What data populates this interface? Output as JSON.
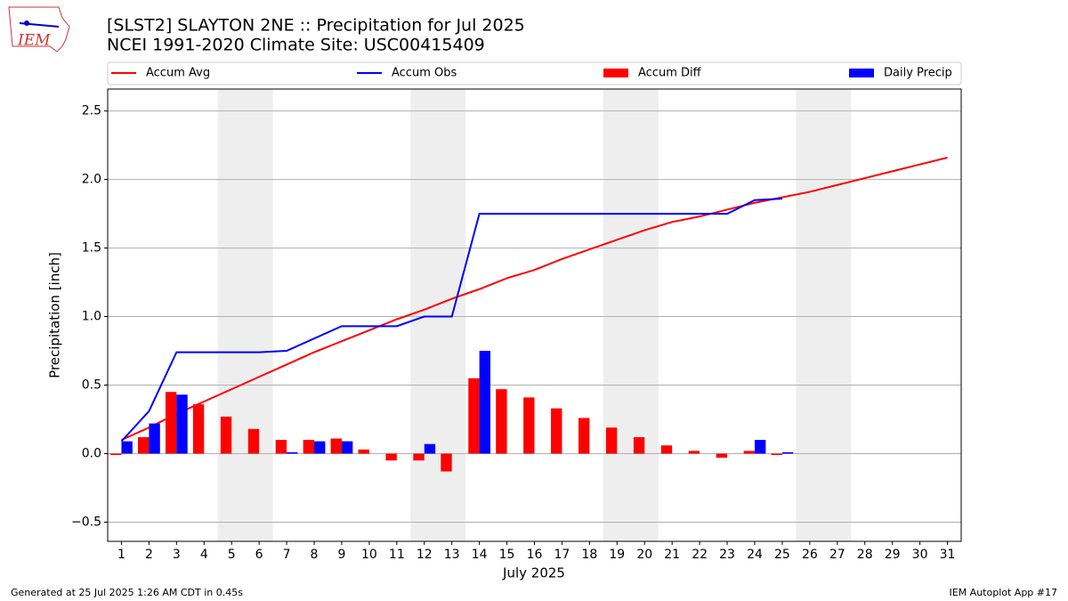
{
  "logo_text": "IEM",
  "footer_left": "Generated at 25 Jul 2025 1:26 AM CDT in 0.45s",
  "footer_right": "IEM Autoplot App #17",
  "chart_data": {
    "type": "combo",
    "title": "[SLST2] SLAYTON 2NE :: Precipitation for Jul 2025",
    "subtitle": "NCEI 1991-2020 Climate Site: USC00415409",
    "ylabel": "Precipitation [inch]",
    "xlabel": "July 2025",
    "x": [
      1,
      2,
      3,
      4,
      5,
      6,
      7,
      8,
      9,
      10,
      11,
      12,
      13,
      14,
      15,
      16,
      17,
      18,
      19,
      20,
      21,
      22,
      23,
      24,
      25,
      26,
      27,
      28,
      29,
      30,
      31
    ],
    "xlim": [
      0.5,
      31.5
    ],
    "xticks": [
      1,
      2,
      3,
      4,
      5,
      6,
      7,
      8,
      9,
      10,
      11,
      12,
      13,
      14,
      15,
      16,
      17,
      18,
      19,
      20,
      21,
      22,
      23,
      24,
      25,
      26,
      27,
      28,
      29,
      30,
      31
    ],
    "ylim": [
      -0.64,
      2.66
    ],
    "yticks": [
      {
        "value": -0.5,
        "label": "−0.5"
      },
      {
        "value": 0,
        "label": "0.0"
      },
      0.5,
      {
        "value": 1,
        "label": "1.0"
      },
      1.5,
      {
        "value": 2,
        "label": "2.0"
      },
      2.5
    ],
    "grid": "y",
    "shaded_spans": [
      [
        4.5,
        6.5
      ],
      [
        11.5,
        13.5
      ],
      [
        18.5,
        20.5
      ],
      [
        25.5,
        27.5
      ]
    ],
    "series": [
      {
        "name": "Accum Avg",
        "kind": "line",
        "color": "#ff0000",
        "values": [
          0.1,
          0.19,
          0.29,
          0.38,
          0.47,
          0.56,
          0.65,
          0.74,
          0.82,
          0.9,
          0.98,
          1.05,
          1.13,
          1.2,
          1.28,
          1.34,
          1.42,
          1.49,
          1.56,
          1.63,
          1.69,
          1.73,
          1.78,
          1.83,
          1.87,
          1.91,
          1.96,
          2.01,
          2.06,
          2.11,
          2.16
        ]
      },
      {
        "name": "Accum Obs",
        "kind": "line",
        "color": "#0000ff",
        "values": [
          0.09,
          0.31,
          0.74,
          0.74,
          0.74,
          0.74,
          0.75,
          0.84,
          0.93,
          0.93,
          0.93,
          1.0,
          1.0,
          1.75,
          1.75,
          1.75,
          1.75,
          1.75,
          1.75,
          1.75,
          1.75,
          1.75,
          1.75,
          1.85,
          1.86,
          null,
          null,
          null,
          null,
          null,
          null
        ]
      },
      {
        "name": "Accum Diff",
        "kind": "bar",
        "color": "#ff0000",
        "values": [
          -0.01,
          0.12,
          0.45,
          0.36,
          0.27,
          0.18,
          0.1,
          0.1,
          0.11,
          0.03,
          -0.05,
          -0.05,
          -0.13,
          0.55,
          0.47,
          0.41,
          0.33,
          0.26,
          0.19,
          0.12,
          0.06,
          0.02,
          -0.03,
          0.02,
          -0.01,
          null,
          null,
          null,
          null,
          null,
          null
        ]
      },
      {
        "name": "Daily Precip",
        "kind": "bar",
        "color": "#0000ff",
        "values": [
          0.09,
          0.22,
          0.43,
          0,
          0,
          0,
          0.01,
          0.09,
          0.09,
          0,
          0,
          0.07,
          0,
          0.75,
          0,
          0,
          0,
          0,
          0,
          0,
          0,
          0,
          0,
          0.1,
          0.01,
          null,
          null,
          null,
          null,
          null,
          null
        ]
      }
    ]
  }
}
